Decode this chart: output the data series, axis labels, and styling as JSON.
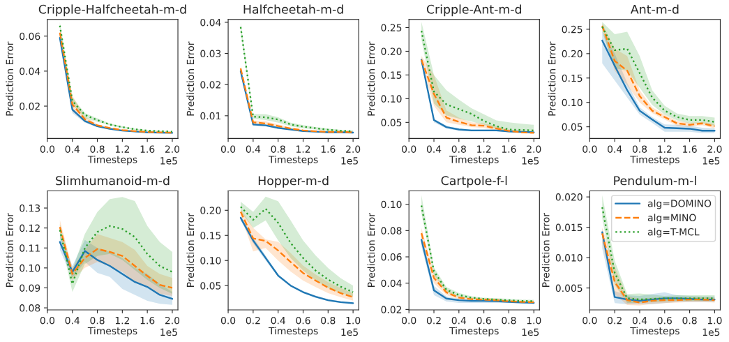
{
  "chart_data": [
    {
      "type": "line",
      "title": "Cripple-Halfcheetah-m-d",
      "xlabel": "Timesteps",
      "ylabel": "Prediction Error",
      "annotations": [
        "1e5"
      ],
      "x": [
        0.2,
        0.4,
        0.6,
        0.8,
        1.0,
        1.2,
        1.4,
        1.6,
        1.8,
        2.0
      ],
      "xlim": [
        0,
        2.09
      ],
      "xticks": [
        {
          "value": 0,
          "label": "0.0"
        },
        0.4,
        0.8,
        1.2,
        1.6,
        {
          "value": 2,
          "label": "2.0"
        }
      ],
      "ylim": [
        0.0015,
        0.0695
      ],
      "yticks": [
        0.02,
        0.04,
        0.06
      ],
      "series": [
        {
          "color": "#1f77b4",
          "line_style": "solid",
          "values": [
            0.059,
            0.018,
            0.0115,
            0.0085,
            0.007,
            0.006,
            0.0055,
            0.005,
            0.0048,
            0.0047
          ],
          "lower": [
            0.058,
            0.016,
            0.0105,
            0.008,
            0.0066,
            0.0057,
            0.0052,
            0.0048,
            0.0046,
            0.0045
          ],
          "upper": [
            0.06,
            0.019,
            0.012,
            0.009,
            0.0073,
            0.0063,
            0.0057,
            0.0052,
            0.005,
            0.0049
          ]
        },
        {
          "color": "#ff7f0e",
          "line_style": "dashed",
          "values": [
            0.062,
            0.021,
            0.0125,
            0.009,
            0.0075,
            0.0063,
            0.0057,
            0.0052,
            0.005,
            0.0048
          ],
          "lower": [
            0.06,
            0.017,
            0.011,
            0.0083,
            0.007,
            0.006,
            0.0054,
            0.005,
            0.0047,
            0.0046
          ],
          "upper": [
            0.064,
            0.026,
            0.014,
            0.0097,
            0.0079,
            0.0066,
            0.006,
            0.0055,
            0.0052,
            0.005
          ]
        },
        {
          "color": "#2ca02c",
          "line_style": "dotted",
          "values": [
            0.066,
            0.023,
            0.015,
            0.012,
            0.0095,
            0.008,
            0.0068,
            0.006,
            0.0057,
            0.0054
          ],
          "lower": [
            0.064,
            0.021,
            0.013,
            0.011,
            0.009,
            0.0075,
            0.0064,
            0.0057,
            0.0054,
            0.0051
          ],
          "upper": [
            0.068,
            0.025,
            0.016,
            0.013,
            0.01,
            0.0085,
            0.0072,
            0.0063,
            0.006,
            0.0057
          ]
        }
      ]
    },
    {
      "type": "line",
      "title": "Halfcheetah-m-d",
      "xlabel": "Timesteps",
      "ylabel": "Prediction Error",
      "annotations": [
        "1e5"
      ],
      "x": [
        0.2,
        0.4,
        0.6,
        0.8,
        1.0,
        1.2,
        1.4,
        1.6,
        1.8,
        2.0
      ],
      "xlim": [
        0,
        2.09
      ],
      "xticks": [
        {
          "value": 0,
          "label": "0.0"
        },
        0.4,
        0.8,
        1.2,
        1.6,
        {
          "value": 2,
          "label": "2.0"
        }
      ],
      "ylim": [
        0.0027,
        0.0409
      ],
      "yticks": [
        0.01,
        0.02,
        0.03,
        0.04
      ],
      "series": [
        {
          "color": "#1f77b4",
          "line_style": "solid",
          "values": [
            0.0243,
            0.0072,
            0.0069,
            0.0061,
            0.0056,
            0.0051,
            0.0049,
            0.0047,
            0.0047,
            0.0046
          ],
          "lower": [
            0.0235,
            0.0068,
            0.0066,
            0.0058,
            0.0054,
            0.0049,
            0.0047,
            0.0045,
            0.0045,
            0.0044
          ],
          "upper": [
            0.025,
            0.0076,
            0.0072,
            0.0064,
            0.0058,
            0.0053,
            0.0051,
            0.0049,
            0.0049,
            0.0048
          ]
        },
        {
          "color": "#ff7f0e",
          "line_style": "dashed",
          "values": [
            0.0252,
            0.0079,
            0.0075,
            0.0067,
            0.0059,
            0.0053,
            0.005,
            0.0048,
            0.0048,
            0.0047
          ],
          "lower": [
            0.0244,
            0.0073,
            0.0069,
            0.0062,
            0.0056,
            0.005,
            0.0048,
            0.0046,
            0.0046,
            0.0045
          ],
          "upper": [
            0.026,
            0.0085,
            0.0082,
            0.0072,
            0.0062,
            0.0056,
            0.0052,
            0.005,
            0.005,
            0.0049
          ]
        },
        {
          "color": "#2ca02c",
          "line_style": "dotted",
          "values": [
            0.0385,
            0.0097,
            0.0095,
            0.0088,
            0.0072,
            0.0065,
            0.006,
            0.0055,
            0.0052,
            0.005
          ],
          "lower": [
            0.037,
            0.009,
            0.0086,
            0.0078,
            0.0066,
            0.006,
            0.0056,
            0.0051,
            0.0049,
            0.0047
          ],
          "upper": [
            0.04,
            0.0105,
            0.0105,
            0.0095,
            0.0078,
            0.007,
            0.0064,
            0.0059,
            0.0055,
            0.0053
          ]
        }
      ]
    },
    {
      "type": "line",
      "title": "Cripple-Ant-m-d",
      "xlabel": "Timesteps",
      "ylabel": "Prediction Error",
      "annotations": [
        "1e5"
      ],
      "x": [
        0.2,
        0.4,
        0.6,
        0.8,
        1.0,
        1.2,
        1.4,
        1.6,
        1.8,
        2.0
      ],
      "xlim": [
        0,
        2.09
      ],
      "xticks": [
        {
          "value": 0,
          "label": "0.0"
        },
        0.4,
        0.8,
        1.2,
        1.6,
        {
          "value": 2,
          "label": "2.0"
        }
      ],
      "ylim": [
        0.016,
        0.267
      ],
      "yticks": [
        0.05,
        {
          "value": 0.1,
          "label": "0.10"
        },
        0.15,
        {
          "value": 0.2,
          "label": "0.20"
        },
        0.25
      ],
      "series": [
        {
          "color": "#1f77b4",
          "line_style": "solid",
          "values": [
            0.182,
            0.055,
            0.04,
            0.035,
            0.033,
            0.033,
            0.033,
            0.031,
            0.03,
            0.029
          ],
          "lower": [
            0.178,
            0.05,
            0.037,
            0.032,
            0.031,
            0.031,
            0.031,
            0.029,
            0.028,
            0.027
          ],
          "upper": [
            0.185,
            0.058,
            0.043,
            0.037,
            0.035,
            0.035,
            0.035,
            0.033,
            0.032,
            0.031
          ]
        },
        {
          "color": "#ff7f0e",
          "line_style": "dashed",
          "values": [
            0.182,
            0.11,
            0.06,
            0.051,
            0.044,
            0.043,
            0.037,
            0.032,
            0.029,
            0.028
          ],
          "lower": [
            0.175,
            0.085,
            0.05,
            0.045,
            0.04,
            0.038,
            0.033,
            0.029,
            0.027,
            0.026
          ],
          "upper": [
            0.19,
            0.15,
            0.075,
            0.06,
            0.05,
            0.048,
            0.042,
            0.035,
            0.032,
            0.031
          ]
        },
        {
          "color": "#2ca02c",
          "line_style": "dotted",
          "values": [
            0.243,
            0.115,
            0.088,
            0.078,
            0.068,
            0.053,
            0.042,
            0.035,
            0.034,
            0.033
          ],
          "lower": [
            0.225,
            0.09,
            0.065,
            0.058,
            0.052,
            0.045,
            0.036,
            0.03,
            0.029,
            0.028
          ],
          "upper": [
            0.262,
            0.15,
            0.118,
            0.098,
            0.08,
            0.067,
            0.054,
            0.05,
            0.047,
            0.045
          ]
        }
      ]
    },
    {
      "type": "line",
      "title": "Ant-m-d",
      "xlabel": "Timesteps",
      "ylabel": "Prediction Error",
      "annotations": [
        "1e5"
      ],
      "x": [
        0.2,
        0.4,
        0.6,
        0.8,
        1.0,
        1.2,
        1.4,
        1.6,
        1.8,
        2.0
      ],
      "xlim": [
        0,
        2.09
      ],
      "xticks": [
        {
          "value": 0,
          "label": "0.0"
        },
        0.4,
        0.8,
        1.2,
        1.6,
        {
          "value": 2,
          "label": "2.0"
        }
      ],
      "ylim": [
        0.026,
        0.27
      ],
      "yticks": [
        0.05,
        {
          "value": 0.1,
          "label": "0.10"
        },
        0.15,
        {
          "value": 0.2,
          "label": "0.20"
        },
        0.25
      ],
      "series": [
        {
          "color": "#1f77b4",
          "line_style": "solid",
          "values": [
            0.227,
            0.175,
            0.125,
            0.083,
            0.065,
            0.048,
            0.047,
            0.046,
            0.042,
            0.042
          ],
          "lower": [
            0.18,
            0.145,
            0.11,
            0.075,
            0.058,
            0.04,
            0.04,
            0.04,
            0.037,
            0.037
          ],
          "upper": [
            0.245,
            0.2,
            0.14,
            0.09,
            0.07,
            0.055,
            0.054,
            0.052,
            0.048,
            0.047
          ]
        },
        {
          "color": "#ff7f0e",
          "line_style": "dashed",
          "values": [
            0.257,
            0.185,
            0.165,
            0.113,
            0.083,
            0.07,
            0.057,
            0.054,
            0.057,
            0.051
          ],
          "lower": [
            0.25,
            0.165,
            0.135,
            0.1,
            0.078,
            0.065,
            0.052,
            0.05,
            0.053,
            0.047
          ],
          "upper": [
            0.262,
            0.21,
            0.195,
            0.125,
            0.09,
            0.075,
            0.062,
            0.058,
            0.06,
            0.056
          ]
        },
        {
          "color": "#2ca02c",
          "line_style": "dotted",
          "values": [
            0.255,
            0.207,
            0.21,
            0.16,
            0.11,
            0.083,
            0.07,
            0.064,
            0.064,
            0.06
          ],
          "lower": [
            0.245,
            0.17,
            0.165,
            0.13,
            0.095,
            0.075,
            0.063,
            0.057,
            0.057,
            0.052
          ],
          "upper": [
            0.265,
            0.24,
            0.245,
            0.195,
            0.125,
            0.093,
            0.077,
            0.072,
            0.072,
            0.069
          ]
        }
      ]
    },
    {
      "type": "line",
      "title": "Slimhumanoid-m-d",
      "xlabel": "Timesteps",
      "ylabel": "Prediction Error",
      "annotations": [
        "1e5"
      ],
      "x": [
        0.2,
        0.4,
        0.6,
        0.8,
        1.0,
        1.2,
        1.4,
        1.6,
        1.8,
        2.0
      ],
      "xlim": [
        0,
        2.09
      ],
      "xticks": [
        {
          "value": 0,
          "label": "0.0"
        },
        0.4,
        0.8,
        1.2,
        1.6,
        {
          "value": 2,
          "label": "2.0"
        }
      ],
      "ylim": [
        0.079,
        0.1386
      ],
      "yticks": [
        0.08,
        0.09,
        {
          "value": 0.1,
          "label": "0.10"
        },
        0.11,
        0.12,
        0.13
      ],
      "series": [
        {
          "color": "#1f77b4",
          "line_style": "solid",
          "values": [
            0.113,
            0.098,
            0.1085,
            0.104,
            0.101,
            0.097,
            0.093,
            0.0905,
            0.0865,
            0.0845
          ],
          "lower": [
            0.109,
            0.095,
            0.103,
            0.0975,
            0.0955,
            0.0895,
            0.0865,
            0.0835,
            0.082,
            0.0815
          ],
          "upper": [
            0.117,
            0.101,
            0.114,
            0.11,
            0.108,
            0.105,
            0.1,
            0.097,
            0.092,
            0.088
          ]
        },
        {
          "color": "#ff7f0e",
          "line_style": "dashed",
          "values": [
            0.1205,
            0.097,
            0.105,
            0.1095,
            0.108,
            0.106,
            0.101,
            0.096,
            0.0915,
            0.09
          ],
          "lower": [
            0.117,
            0.094,
            0.1,
            0.103,
            0.101,
            0.098,
            0.093,
            0.091,
            0.087,
            0.086
          ],
          "upper": [
            0.124,
            0.1,
            0.109,
            0.117,
            0.115,
            0.113,
            0.109,
            0.101,
            0.097,
            0.095
          ]
        },
        {
          "color": "#2ca02c",
          "line_style": "dotted",
          "values": [
            0.119,
            0.092,
            0.11,
            0.118,
            0.121,
            0.1195,
            0.1155,
            0.107,
            0.101,
            0.098
          ],
          "lower": [
            0.116,
            0.088,
            0.102,
            0.106,
            0.107,
            0.104,
            0.099,
            0.094,
            0.09,
            0.087
          ],
          "upper": [
            0.122,
            0.099,
            0.117,
            0.128,
            0.1345,
            0.1355,
            0.1335,
            0.121,
            0.113,
            0.108
          ]
        }
      ]
    },
    {
      "type": "line",
      "title": "Hopper-m-d",
      "xlabel": "Timesteps",
      "ylabel": "Prediction Error",
      "annotations": [
        "1e5"
      ],
      "x": [
        0.1,
        0.2,
        0.3,
        0.4,
        0.5,
        0.6,
        0.7,
        0.8,
        0.9,
        1.0
      ],
      "xlim": [
        0,
        1.045
      ],
      "xticks": [
        {
          "value": 0,
          "label": "0.0"
        },
        0.2,
        0.4,
        0.6,
        0.8,
        {
          "value": 1,
          "label": "1.0"
        }
      ],
      "ylim": [
        0.0017,
        0.2387
      ],
      "yticks": [
        0.05,
        {
          "value": 0.1,
          "label": "0.10"
        },
        0.15,
        {
          "value": 0.2,
          "label": "0.20"
        }
      ],
      "series": [
        {
          "color": "#1f77b4",
          "line_style": "solid",
          "values": [
            0.185,
            0.14,
            0.105,
            0.07,
            0.05,
            0.037,
            0.028,
            0.021,
            0.017,
            0.015
          ],
          "lower": [
            0.18,
            0.134,
            0.1,
            0.067,
            0.048,
            0.035,
            0.026,
            0.019,
            0.015,
            0.013
          ],
          "upper": [
            0.19,
            0.146,
            0.11,
            0.073,
            0.052,
            0.039,
            0.03,
            0.023,
            0.019,
            0.017
          ]
        },
        {
          "color": "#ff7f0e",
          "line_style": "dashed",
          "values": [
            0.197,
            0.144,
            0.139,
            0.12,
            0.097,
            0.075,
            0.06,
            0.046,
            0.035,
            0.027
          ],
          "lower": [
            0.19,
            0.118,
            0.125,
            0.1,
            0.078,
            0.06,
            0.047,
            0.035,
            0.027,
            0.02
          ],
          "upper": [
            0.203,
            0.165,
            0.142,
            0.137,
            0.115,
            0.09,
            0.072,
            0.057,
            0.045,
            0.035
          ]
        },
        {
          "color": "#2ca02c",
          "line_style": "dotted",
          "values": [
            0.207,
            0.181,
            0.203,
            0.175,
            0.135,
            0.105,
            0.08,
            0.062,
            0.048,
            0.037
          ],
          "lower": [
            0.197,
            0.165,
            0.18,
            0.14,
            0.105,
            0.08,
            0.06,
            0.045,
            0.035,
            0.028
          ],
          "upper": [
            0.217,
            0.197,
            0.227,
            0.218,
            0.18,
            0.14,
            0.11,
            0.085,
            0.065,
            0.05
          ]
        }
      ]
    },
    {
      "type": "line",
      "title": "Cartpole-f-l",
      "xlabel": "Timesteps",
      "ylabel": "Prediction Error",
      "annotations": [
        "1e5"
      ],
      "x": [
        0.1,
        0.2,
        0.3,
        0.4,
        0.5,
        0.6,
        0.7,
        0.8,
        0.9,
        1.0
      ],
      "xlim": [
        0,
        1.045
      ],
      "xticks": [
        {
          "value": 0,
          "label": "0.0"
        },
        0.2,
        0.4,
        0.6,
        0.8,
        {
          "value": 1,
          "label": "1.0"
        }
      ],
      "ylim": [
        0.0197,
        0.1102
      ],
      "yticks": [
        0.02,
        0.04,
        0.06,
        0.08,
        {
          "value": 0.1,
          "label": "0.10"
        }
      ],
      "series": [
        {
          "color": "#1f77b4",
          "line_style": "solid",
          "values": [
            0.073,
            0.0345,
            0.0283,
            0.027,
            0.0265,
            0.0265,
            0.0263,
            0.0258,
            0.0253,
            0.025
          ],
          "lower": [
            0.068,
            0.031,
            0.026,
            0.025,
            0.025,
            0.025,
            0.025,
            0.0248,
            0.0245,
            0.0243
          ],
          "upper": [
            0.076,
            0.038,
            0.03,
            0.028,
            0.0275,
            0.0275,
            0.027,
            0.0265,
            0.026,
            0.0258
          ]
        },
        {
          "color": "#ff7f0e",
          "line_style": "dashed",
          "values": [
            0.078,
            0.044,
            0.033,
            0.029,
            0.0278,
            0.0275,
            0.027,
            0.0262,
            0.0258,
            0.0255
          ],
          "lower": [
            0.074,
            0.04,
            0.031,
            0.0278,
            0.0268,
            0.0265,
            0.026,
            0.0255,
            0.025,
            0.0248
          ],
          "upper": [
            0.082,
            0.048,
            0.035,
            0.03,
            0.029,
            0.0285,
            0.028,
            0.027,
            0.0265,
            0.026
          ]
        },
        {
          "color": "#2ca02c",
          "line_style": "dotted",
          "values": [
            0.099,
            0.049,
            0.035,
            0.031,
            0.029,
            0.028,
            0.0275,
            0.027,
            0.0265,
            0.0263
          ],
          "lower": [
            0.093,
            0.046,
            0.033,
            0.0295,
            0.028,
            0.027,
            0.0265,
            0.026,
            0.0255,
            0.0253
          ],
          "upper": [
            0.107,
            0.052,
            0.037,
            0.0325,
            0.03,
            0.029,
            0.0285,
            0.028,
            0.0275,
            0.0273
          ]
        }
      ]
    },
    {
      "type": "line",
      "title": "Pendulum-m-l",
      "xlabel": "Timesteps",
      "ylabel": "Prediction Error",
      "annotations": [
        "1e5"
      ],
      "legend": "top right",
      "x": [
        0.1,
        0.2,
        0.3,
        0.4,
        0.5,
        0.6,
        0.7,
        0.8,
        0.9,
        1.0
      ],
      "xlim": [
        0,
        1.045
      ],
      "xticks": [
        {
          "value": 0,
          "label": "0.0"
        },
        0.2,
        0.4,
        0.6,
        0.8,
        {
          "value": 1,
          "label": "1.0"
        }
      ],
      "ylim": [
        0.0014,
        0.021
      ],
      "yticks": [
        0.005,
        {
          "value": 0.01,
          "label": "0.010"
        },
        0.015,
        {
          "value": 0.02,
          "label": "0.020"
        }
      ],
      "series": [
        {
          "name": "alg=DOMINO",
          "color": "#1f77b4",
          "line_style": "solid",
          "values": [
            0.0142,
            0.0035,
            0.0031,
            0.0029,
            0.0031,
            0.0033,
            0.0033,
            0.0032,
            0.0031,
            0.0031
          ],
          "lower": [
            0.0115,
            0.0025,
            0.0023,
            0.0023,
            0.0023,
            0.0025,
            0.0027,
            0.0027,
            0.0027,
            0.0027
          ],
          "upper": [
            0.0148,
            0.0045,
            0.0038,
            0.0037,
            0.004,
            0.0043,
            0.0038,
            0.0037,
            0.0036,
            0.0036
          ]
        },
        {
          "name": "alg=MINO",
          "color": "#ff7f0e",
          "line_style": "dashed",
          "values": [
            0.014,
            0.006,
            0.003,
            0.0026,
            0.0029,
            0.003,
            0.003,
            0.0031,
            0.0031,
            0.003
          ],
          "lower": [
            0.0125,
            0.004,
            0.0022,
            0.0021,
            0.0024,
            0.0025,
            0.0026,
            0.0027,
            0.0027,
            0.0026
          ],
          "upper": [
            0.015,
            0.0085,
            0.0037,
            0.0032,
            0.0034,
            0.0035,
            0.0035,
            0.0035,
            0.0035,
            0.0034
          ]
        },
        {
          "name": "alg=T-MCL",
          "color": "#2ca02c",
          "line_style": "dotted",
          "values": [
            0.0183,
            0.0075,
            0.0033,
            0.0031,
            0.0032,
            0.0033,
            0.0033,
            0.0033,
            0.0033,
            0.0033
          ],
          "lower": [
            0.0165,
            0.0055,
            0.0025,
            0.0026,
            0.0027,
            0.0028,
            0.0029,
            0.0029,
            0.0029,
            0.0029
          ],
          "upper": [
            0.0203,
            0.0095,
            0.004,
            0.0041,
            0.0039,
            0.0037,
            0.0038,
            0.0038,
            0.0038,
            0.0038
          ]
        }
      ]
    }
  ]
}
